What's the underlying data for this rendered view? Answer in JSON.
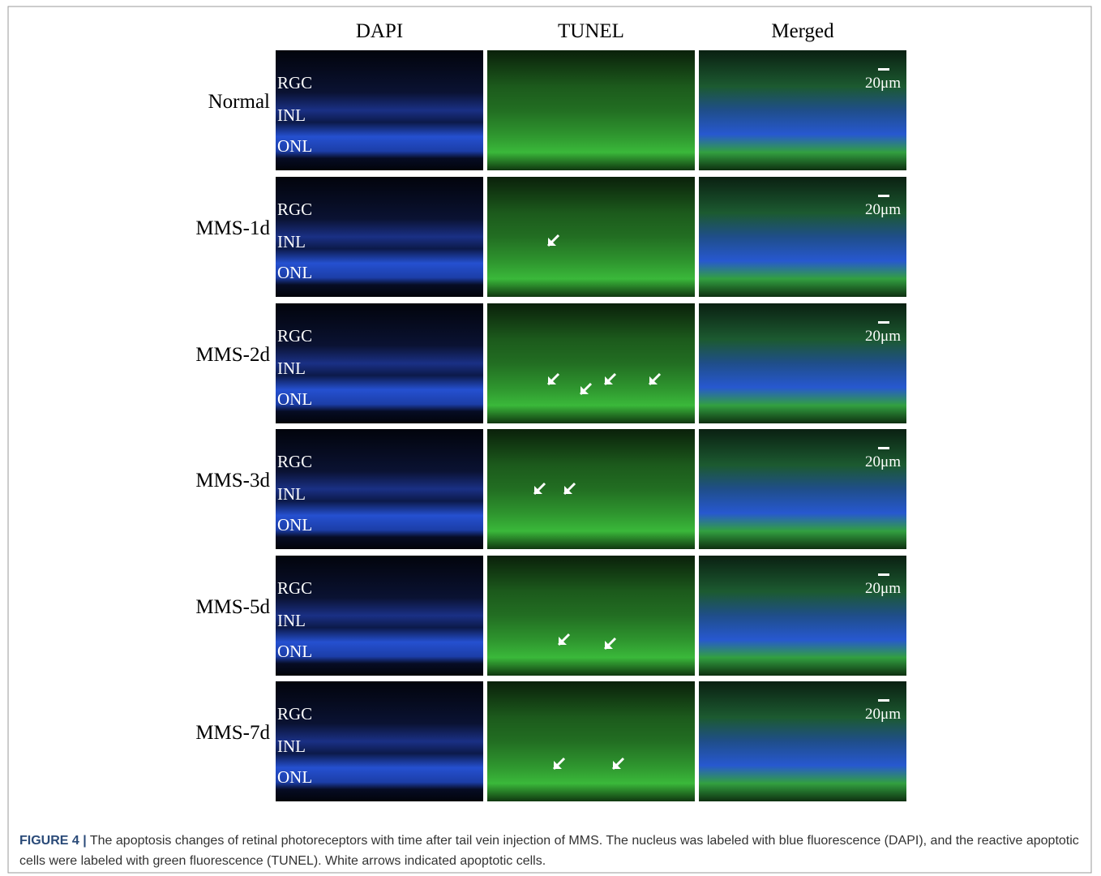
{
  "figure": {
    "column_headers": [
      "DAPI",
      "TUNEL",
      "Merged"
    ],
    "rows": [
      {
        "label": "Normal",
        "layers": [
          "RGC",
          "INL",
          "ONL"
        ],
        "scale": "20μm"
      },
      {
        "label": "MMS-1d",
        "layers": [
          "RGC",
          "INL",
          "ONL"
        ],
        "scale": "20μm"
      },
      {
        "label": "MMS-2d",
        "layers": [
          "RGC",
          "INL",
          "ONL"
        ],
        "scale": "20μm"
      },
      {
        "label": "MMS-3d",
        "layers": [
          "RGC",
          "INL",
          "ONL"
        ],
        "scale": "20μm"
      },
      {
        "label": "MMS-5d",
        "layers": [
          "RGC",
          "INL",
          "ONL"
        ],
        "scale": "20μm"
      },
      {
        "label": "MMS-7d",
        "layers": [
          "RGC",
          "INL",
          "ONL"
        ],
        "scale": "20μm"
      }
    ]
  },
  "caption": {
    "label": "FIGURE 4 |",
    "text": "The apoptosis changes of retinal photoreceptors with time after tail vein injection of MMS. The nucleus was labeled with blue fluorescence (DAPI), and the reactive apoptotic cells were labeled with green fluorescence (TUNEL). White arrows indicated apoptotic cells."
  }
}
